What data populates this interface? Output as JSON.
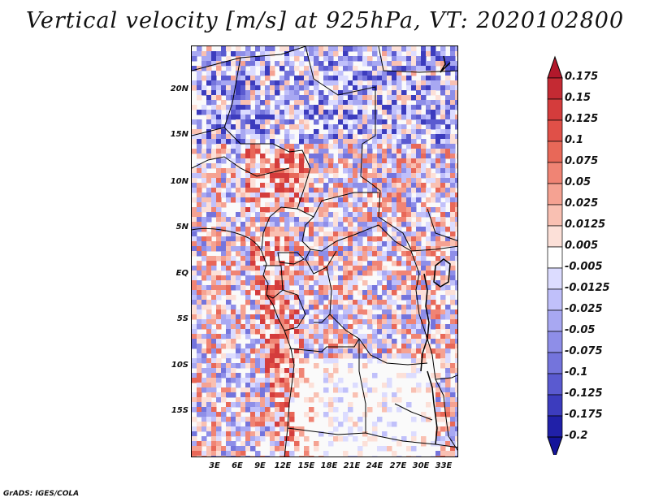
{
  "title": "Vertical velocity [m/s] at 925hPa, VT: 2020102800",
  "footer": "GrADS: IGES/COLA",
  "map": {
    "lat_labels": [
      "20N",
      "15N",
      "10N",
      "5N",
      "EQ",
      "5S",
      "10S",
      "15S"
    ],
    "lon_labels": [
      "3E",
      "6E",
      "9E",
      "12E",
      "15E",
      "18E",
      "21E",
      "24E",
      "27E",
      "30E",
      "33E"
    ]
  },
  "colorbar": {
    "labels": [
      "0.175",
      "0.15",
      "0.125",
      "0.1",
      "0.075",
      "0.05",
      "0.025",
      "0.0125",
      "0.005",
      "-0.005",
      "-0.0125",
      "-0.025",
      "-0.05",
      "-0.075",
      "-0.1",
      "-0.125",
      "-0.175",
      "-0.2"
    ],
    "colors": [
      "#b2182b",
      "#c42a33",
      "#d43c3c",
      "#e05048",
      "#e86858",
      "#f08474",
      "#f5a292",
      "#f9c0b2",
      "#fce0d8",
      "#ffffff",
      "#dcdcff",
      "#c0c0fa",
      "#a8a8f2",
      "#8e8ee8",
      "#7474dc",
      "#5a5ad0",
      "#3c3cbe",
      "#2020a8",
      "#14149a"
    ]
  }
}
